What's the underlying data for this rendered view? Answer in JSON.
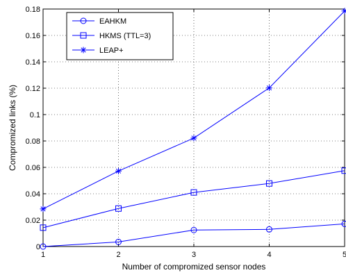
{
  "chart_data": {
    "type": "line",
    "xlabel": "Number of compromized sensor nodes",
    "ylabel": "Compromized links (%)",
    "x": [
      1,
      2,
      3,
      4,
      5
    ],
    "xlim": [
      1,
      5
    ],
    "ylim": [
      0,
      0.18
    ],
    "xticks": [
      "1",
      "2",
      "3",
      "4",
      "5"
    ],
    "yticks": [
      "0",
      "0.02",
      "0.04",
      "0.06",
      "0.08",
      "0.1",
      "0.12",
      "0.14",
      "0.16",
      "0.18"
    ],
    "grid": true,
    "legend_position": "top-left",
    "series": [
      {
        "name": "EAHKM",
        "marker": "circle",
        "color": "#0000ff",
        "values": [
          0.0,
          0.0035,
          0.0125,
          0.013,
          0.0172
        ]
      },
      {
        "name": "HKMS (TTL=3)",
        "marker": "square",
        "color": "#0000ff",
        "values": [
          0.0143,
          0.0288,
          0.041,
          0.0478,
          0.0575
        ]
      },
      {
        "name": "LEAP+",
        "marker": "asterisk",
        "color": "#0000ff",
        "values": [
          0.0285,
          0.0572,
          0.0822,
          0.1202,
          0.1785
        ]
      }
    ]
  }
}
